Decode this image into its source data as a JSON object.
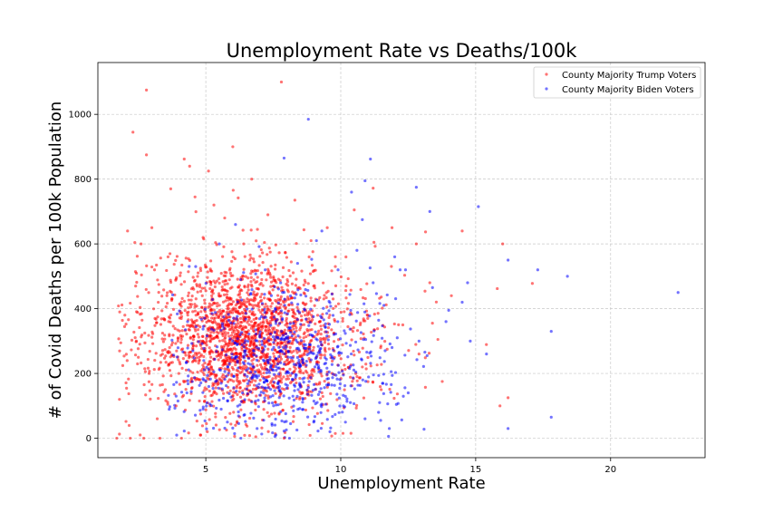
{
  "chart_data": {
    "type": "scatter",
    "title": "Unemployment Rate vs Deaths/100k",
    "xlabel": "Unemployment Rate",
    "ylabel": "# of Covid Deaths per 100k Population",
    "xlim": [
      1.0,
      23.5
    ],
    "ylim": [
      -60,
      1160
    ],
    "xticks": [
      5,
      10,
      15,
      20
    ],
    "yticks": [
      0,
      200,
      400,
      600,
      800,
      1000
    ],
    "grid": true,
    "legend_position": "top-right",
    "series": [
      {
        "name": "County Majority Trump Voters",
        "color": "#ff0000",
        "points": [
          [
            2.8,
            1075
          ],
          [
            7.8,
            1100
          ],
          [
            2.3,
            945
          ],
          [
            6.0,
            900
          ],
          [
            2.8,
            875
          ],
          [
            4.2,
            862
          ],
          [
            4.4,
            840
          ],
          [
            5.1,
            825
          ],
          [
            3.7,
            770
          ],
          [
            4.6,
            745
          ],
          [
            8.3,
            735
          ],
          [
            5.3,
            720
          ],
          [
            10.5,
            705
          ],
          [
            3.0,
            650
          ],
          [
            2.1,
            640
          ],
          [
            11.9,
            650
          ],
          [
            11.2,
            772
          ],
          [
            6.2,
            742
          ],
          [
            12.8,
            600
          ],
          [
            14.5,
            640
          ],
          [
            16.0,
            600
          ],
          [
            17.1,
            478
          ],
          [
            15.8,
            462
          ],
          [
            13.6,
            305
          ],
          [
            15.9,
            100
          ],
          [
            16.2,
            125
          ],
          [
            2.6,
            600
          ],
          [
            2.0,
            380
          ],
          [
            1.8,
            120
          ],
          [
            1.7,
            0
          ],
          [
            2.2,
            0
          ],
          [
            2.7,
            0
          ],
          [
            3.3,
            0
          ],
          [
            4.1,
            0
          ],
          [
            4.8,
            10
          ],
          [
            6.1,
            40
          ],
          [
            7.9,
            0
          ],
          [
            3.9,
            100
          ],
          [
            3.2,
            60
          ],
          [
            2.5,
            250
          ],
          [
            2.9,
            200
          ],
          [
            3.5,
            150
          ],
          [
            4.0,
            200
          ],
          [
            9.8,
            560
          ],
          [
            10.2,
            470
          ],
          [
            11.0,
            370
          ],
          [
            12.3,
            350
          ],
          [
            12.9,
            260
          ],
          [
            13.3,
            480
          ],
          [
            14.1,
            440
          ],
          [
            11.5,
            150
          ],
          [
            10.8,
            220
          ],
          [
            9.5,
            650
          ],
          [
            8.9,
            610
          ],
          [
            7.3,
            690
          ],
          [
            6.7,
            800
          ],
          [
            5.7,
            680
          ],
          [
            4.9,
            620
          ],
          [
            3.6,
            560
          ],
          [
            3.1,
            520
          ],
          [
            2.4,
            470
          ]
        ]
      },
      {
        "name": "County Majority Biden Voters",
        "color": "#0000ff",
        "points": [
          [
            8.8,
            985
          ],
          [
            7.9,
            865
          ],
          [
            11.1,
            862
          ],
          [
            10.9,
            795
          ],
          [
            10.4,
            760
          ],
          [
            10.8,
            675
          ],
          [
            15.1,
            715
          ],
          [
            12.8,
            775
          ],
          [
            13.3,
            700
          ],
          [
            9.3,
            640
          ],
          [
            16.2,
            550
          ],
          [
            17.3,
            520
          ],
          [
            18.4,
            500
          ],
          [
            14.7,
            480
          ],
          [
            22.5,
            450
          ],
          [
            12.4,
            520
          ],
          [
            17.8,
            330
          ],
          [
            15.4,
            260
          ],
          [
            16.2,
            30
          ],
          [
            17.8,
            65
          ],
          [
            14.5,
            420
          ],
          [
            13.9,
            360
          ],
          [
            13.2,
            255
          ],
          [
            12.5,
            140
          ],
          [
            11.8,
            30
          ],
          [
            11.4,
            80
          ],
          [
            10.9,
            60
          ],
          [
            10.1,
            100
          ],
          [
            9.6,
            20
          ],
          [
            9.0,
            50
          ],
          [
            8.6,
            120
          ],
          [
            8.1,
            0
          ],
          [
            7.6,
            10
          ],
          [
            6.9,
            30
          ],
          [
            6.3,
            0
          ],
          [
            5.8,
            50
          ],
          [
            4.9,
            90
          ],
          [
            4.3,
            140
          ],
          [
            3.9,
            130
          ],
          [
            11.6,
            410
          ],
          [
            12.0,
            560
          ],
          [
            13.4,
            465
          ],
          [
            14.0,
            395
          ],
          [
            11.2,
            480
          ],
          [
            10.6,
            580
          ],
          [
            9.9,
            520
          ],
          [
            9.1,
            610
          ],
          [
            8.4,
            540
          ],
          [
            7.2,
            520
          ],
          [
            6.1,
            660
          ],
          [
            5.5,
            600
          ],
          [
            14.8,
            300
          ],
          [
            12.9,
            300
          ],
          [
            11.9,
            280
          ],
          [
            12.2,
            520
          ]
        ]
      }
    ]
  }
}
